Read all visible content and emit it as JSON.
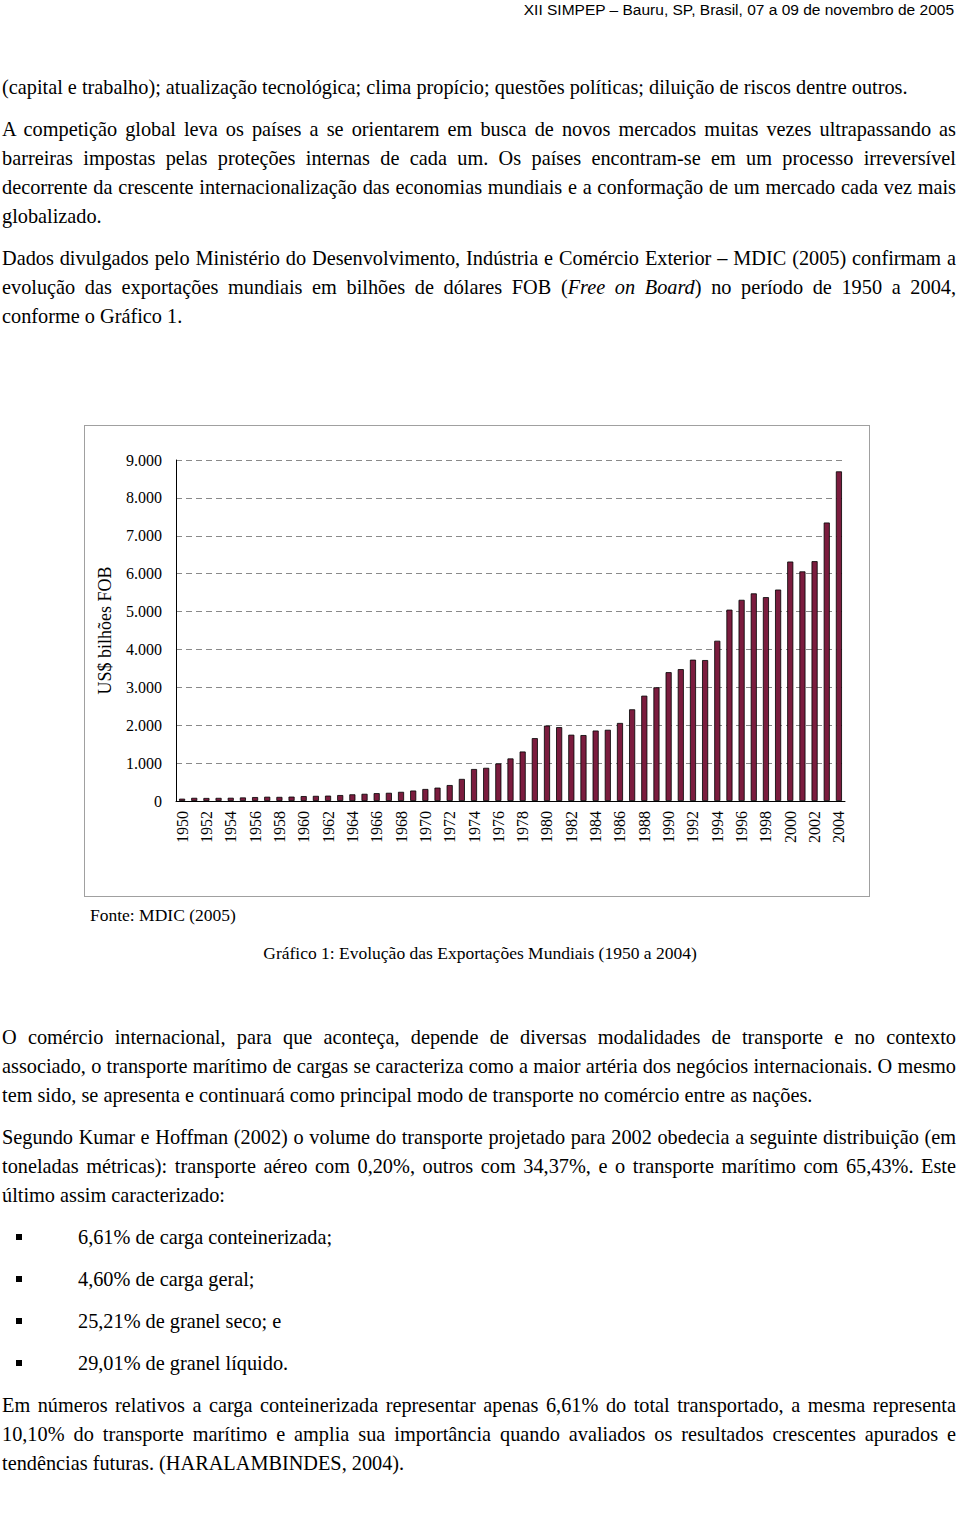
{
  "header": "XII SIMPEP – Bauru, SP, Brasil, 07 a 09 de novembro de 2005",
  "paragraphs_before": [
    [
      {
        "text": "(capital e trabalho); atualização tecnológica; clima propício; questões políticas; diluição de riscos dentre outros."
      }
    ],
    [
      {
        "text": "A competição global leva os países a se orientarem em busca de novos mercados muitas vezes ultrapassando as barreiras impostas pelas proteções internas de cada um. Os países encontram-se em um processo irreversível decorrente da crescente internacionalização das economias mundiais e a conformação de um mercado cada vez mais globalizado."
      }
    ],
    [
      {
        "text": "Dados divulgados pelo Ministério do Desenvolvimento, Indústria e Comércio Exterior – MDIC (2005) confirmam a evolução das exportações mundiais em bilhões de dólares FOB ("
      },
      {
        "text": "Free on Board",
        "italic": true
      },
      {
        "text": ") no período de 1950 a 2004, conforme o Gráfico 1."
      }
    ]
  ],
  "chart_data": {
    "type": "bar",
    "y_label": "US$ bilhões FOB",
    "categories": [
      "1950",
      null,
      "1952",
      null,
      "1954",
      null,
      "1956",
      null,
      "1958",
      null,
      "1960",
      null,
      "1962",
      null,
      "1964",
      null,
      "1966",
      null,
      "1968",
      null,
      "1970",
      null,
      "1972",
      null,
      "1974",
      null,
      "1976",
      null,
      "1978",
      null,
      "1980",
      null,
      "1982",
      null,
      "1984",
      null,
      "1986",
      null,
      "1988",
      null,
      "1990",
      null,
      "1992",
      null,
      "1994",
      null,
      "1996",
      null,
      "1998",
      null,
      "2000",
      null,
      "2002",
      null,
      "2004"
    ],
    "values": [
      62,
      84,
      80,
      83,
      86,
      94,
      104,
      113,
      109,
      116,
      130,
      136,
      142,
      157,
      176,
      190,
      207,
      217,
      242,
      276,
      317,
      353,
      421,
      583,
      844,
      876,
      990,
      1124,
      1306,
      1659,
      1990,
      1950,
      1750,
      1740,
      1860,
      1880,
      2060,
      2420,
      2780,
      3000,
      3400,
      3480,
      3730,
      3720,
      4230,
      5050,
      5310,
      5480,
      5380,
      5580,
      6320,
      6060,
      6330,
      7350,
      8700
    ],
    "color": "#7b1c3e",
    "ylim": [
      0,
      9000
    ],
    "yticks": [
      0,
      {
        "value": 1000,
        "label": "1.000"
      },
      {
        "value": 2000,
        "label": "2.000"
      },
      {
        "value": 3000,
        "label": "3.000"
      },
      {
        "value": 4000,
        "label": "4.000"
      },
      {
        "value": 5000,
        "label": "5.000"
      },
      {
        "value": 6000,
        "label": "6.000"
      },
      {
        "value": 7000,
        "label": "7.000"
      },
      {
        "value": 8000,
        "label": "8.000"
      },
      {
        "value": 9000,
        "label": "9.000"
      }
    ],
    "grid": true
  },
  "source": "Fonte: MDIC (2005)",
  "caption": "Gráfico 1: Evolução das Exportações Mundiais (1950 a 2004)",
  "paragraphs_after": [
    "O comércio internacional, para que aconteça, depende de diversas modalidades de transporte e no contexto associado, o transporte marítimo de cargas se caracteriza como a maior artéria dos negócios internacionais. O mesmo tem sido, se apresenta e continuará como principal modo de transporte no comércio entre as nações.",
    "Segundo Kumar e Hoffman (2002) o volume do transporte projetado para 2002 obedecia a seguinte distribuição (em toneladas métricas): transporte aéreo com 0,20%, outros com 34,37%, e o transporte marítimo com 65,43%. Este último assim caracterizado:"
  ],
  "bullets": [
    "6,61% de carga conteinerizada;",
    "4,60% de carga geral;",
    "25,21% de granel seco; e",
    "29,01% de granel líquido."
  ],
  "closing_paragraph": "Em números relativos a carga conteinerizada representar apenas 6,61% do total transportado, a mesma representa 10,10% do transporte marítimo e amplia sua importância quando avaliados os resultados crescentes apurados e tendências futuras. (HARALAMBINDES, 2004)."
}
